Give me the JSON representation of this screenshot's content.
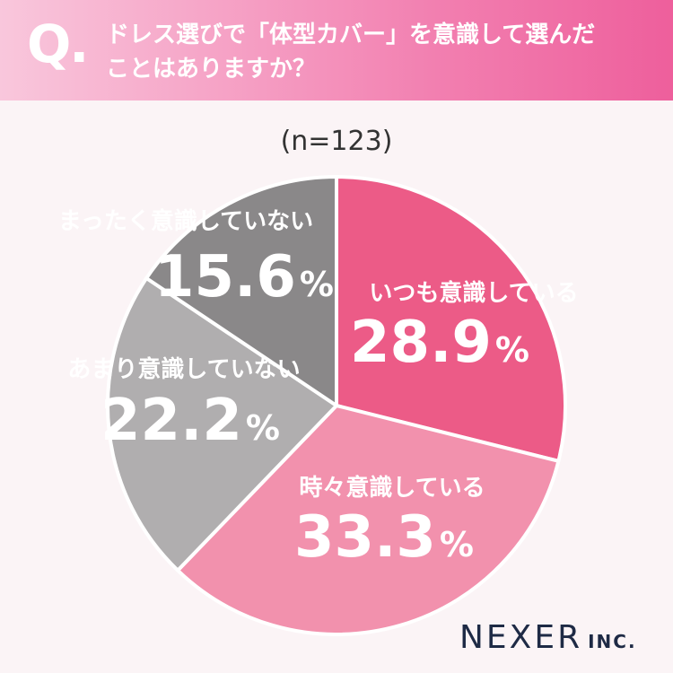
{
  "header": {
    "q_mark": "Q.",
    "question_line1": "ドレス選びで「体型カバー」を意識して選んだ",
    "question_line2": "ことはありますか？"
  },
  "sample_label": "(n=123)",
  "brand": {
    "name": "NEXER",
    "suffix": "INC."
  },
  "chart_data": {
    "type": "pie",
    "title": "",
    "slices": [
      {
        "label": "いつも意識している",
        "value": 28.9,
        "display": "28.9",
        "color": "#ec5b87",
        "label_color": "#ffffff"
      },
      {
        "label": "時々意識している",
        "value": 33.3,
        "display": "33.3",
        "color": "#f291ad",
        "label_color": "#ffffff"
      },
      {
        "label": "あまり意識していない",
        "value": 22.2,
        "display": "22.2",
        "color": "#b0aeaf",
        "label_color": "#ffffff"
      },
      {
        "label": "まったく意識していない",
        "value": 15.6,
        "display": "15.6",
        "color": "#8a8889",
        "label_color": "#ffffff"
      }
    ],
    "unit": "%",
    "start_angle_deg": 0,
    "direction": "clockwise"
  }
}
